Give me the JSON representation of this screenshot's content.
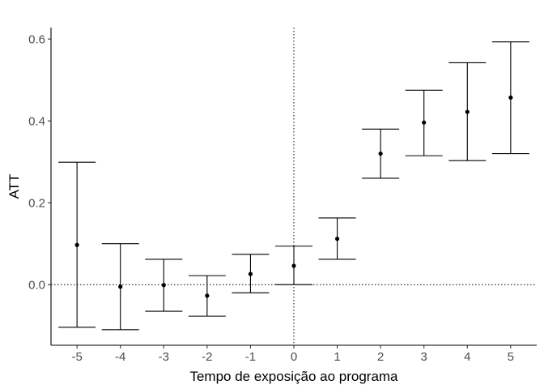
{
  "chart_data": {
    "type": "scatter",
    "subtype": "point-with-errorbars",
    "title": "",
    "xlabel": "Tempo de exposição ao programa",
    "ylabel": "ATT",
    "x": [
      -5,
      -4,
      -3,
      -2,
      -1,
      0,
      1,
      2,
      3,
      4,
      5
    ],
    "estimate": [
      0.097,
      -0.005,
      -0.001,
      -0.027,
      0.026,
      0.046,
      0.112,
      0.32,
      0.396,
      0.422,
      0.457
    ],
    "ci_lower": [
      -0.104,
      -0.11,
      -0.065,
      -0.077,
      -0.02,
      0.0,
      0.062,
      0.26,
      0.315,
      0.303,
      0.32
    ],
    "ci_upper": [
      0.299,
      0.1,
      0.062,
      0.022,
      0.074,
      0.094,
      0.163,
      0.38,
      0.475,
      0.542,
      0.593
    ],
    "xlim": [
      -5.6,
      5.6
    ],
    "ylim": [
      -0.148,
      0.628
    ],
    "xticks": [
      "-5",
      "-4",
      "-3",
      "-2",
      "-1",
      "0",
      "1",
      "2",
      "3",
      "4",
      "5"
    ],
    "xtick_values": [
      -5,
      -4,
      -3,
      -2,
      -1,
      0,
      1,
      2,
      3,
      4,
      5
    ],
    "yticks": [
      "0.0",
      "0.2",
      "0.4",
      "0.6"
    ],
    "ytick_values": [
      0.0,
      0.2,
      0.4,
      0.6
    ],
    "reference_lines": {
      "horizontal_y": 0,
      "vertical_x": 0,
      "style": "dotted"
    },
    "grid": false,
    "colors": {
      "marks": "#000000",
      "axis": "#000000",
      "tick_label": "#4d4d4d"
    }
  }
}
